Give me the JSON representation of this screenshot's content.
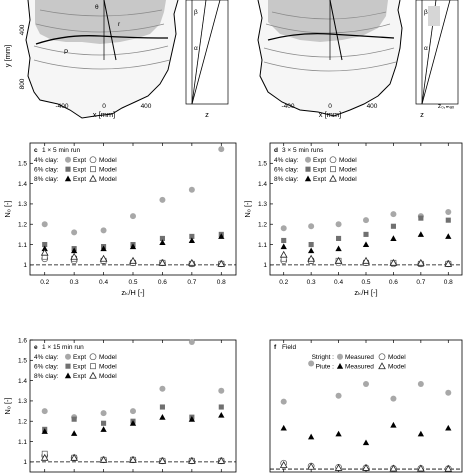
{
  "chart_data": [
    {
      "id": "a",
      "type": "diagram",
      "ylabel": "y [mm]",
      "xlabel": "x [mm]",
      "yticks": [
        400,
        800
      ],
      "xticks": [
        -400,
        0,
        400
      ],
      "labels": [
        "θ",
        "r",
        "P"
      ],
      "side": {
        "xlabel": "z",
        "labels": [
          "β",
          "α"
        ]
      }
    },
    {
      "id": "b",
      "type": "diagram",
      "xticks": [
        -400,
        0,
        400
      ],
      "xlabel": "x [mm]",
      "side": {
        "xlabel": "z",
        "tick": "z₀,ₘₐₓ",
        "labels": [
          "β",
          "α"
        ]
      }
    },
    {
      "id": "c",
      "type": "scatter",
      "panel_label": "c",
      "title": "1 × 5 min run",
      "xlabel": "zₖ/H [-]",
      "ylabel": "N₀ [-]",
      "xlim": [
        0.15,
        0.85
      ],
      "ylim": [
        0.95,
        1.6
      ],
      "xticks": [
        "0.2",
        "0.3",
        "0.4",
        "0.5",
        "0.6",
        "0.7",
        "0.8"
      ],
      "yticks": [
        "1",
        "1.1",
        "1.2",
        "1.3",
        "1.4",
        "1.5"
      ],
      "x": [
        0.2,
        0.3,
        0.4,
        0.5,
        0.6,
        0.7,
        0.8
      ],
      "reference_line": 1.0,
      "legend": [
        {
          "group": "4% clay:",
          "expt": "Expt",
          "model": "Model"
        },
        {
          "group": "6% clay:",
          "expt": "Expt",
          "model": "Model"
        },
        {
          "group": "8% clay:",
          "expt": "Expt",
          "model": "Model"
        }
      ],
      "series": [
        {
          "name": "4% clay: Expt",
          "values": [
            1.2,
            1.16,
            1.17,
            1.24,
            1.32,
            1.37,
            1.57
          ]
        },
        {
          "name": "4% clay: Model",
          "values": [
            1.03,
            1.02,
            1.02,
            1.01,
            1.01,
            1.005,
            1.005
          ]
        },
        {
          "name": "6% clay: Expt",
          "values": [
            1.1,
            1.08,
            1.09,
            1.1,
            1.13,
            1.14,
            1.15
          ]
        },
        {
          "name": "6% clay: Model",
          "values": [
            1.04,
            1.03,
            1.02,
            1.01,
            1.01,
            1.005,
            1.005
          ]
        },
        {
          "name": "8% clay: Expt",
          "values": [
            1.08,
            1.07,
            1.08,
            1.09,
            1.11,
            1.12,
            1.14
          ]
        },
        {
          "name": "8% clay: Model",
          "values": [
            1.06,
            1.04,
            1.03,
            1.02,
            1.01,
            1.01,
            1.005
          ]
        }
      ]
    },
    {
      "id": "d",
      "type": "scatter",
      "panel_label": "d",
      "title": "3 × 5 min runs",
      "xlabel": "zₖ/H [-]",
      "ylabel": "N₀ [-]",
      "xlim": [
        0.15,
        0.85
      ],
      "ylim": [
        0.95,
        1.6
      ],
      "xticks": [
        "0.2",
        "0.3",
        "0.4",
        "0.5",
        "0.6",
        "0.7",
        "0.8"
      ],
      "yticks": [
        "1",
        "1.1",
        "1.2",
        "1.3",
        "1.4",
        "1.5"
      ],
      "x": [
        0.2,
        0.3,
        0.4,
        0.5,
        0.6,
        0.7,
        0.8
      ],
      "reference_line": 1.0,
      "legend": [
        {
          "group": "4% clay:",
          "expt": "Expt",
          "model": "Model"
        },
        {
          "group": "6% clay:",
          "expt": "Expt",
          "model": "Model"
        },
        {
          "group": "8% clay:",
          "expt": "Expt",
          "model": "Model"
        }
      ],
      "series": [
        {
          "name": "4% clay: Expt",
          "values": [
            1.18,
            1.19,
            1.2,
            1.22,
            1.25,
            1.24,
            1.26
          ]
        },
        {
          "name": "4% clay: Model",
          "values": [
            1.02,
            1.02,
            1.01,
            1.01,
            1.005,
            1.005,
            1.005
          ]
        },
        {
          "name": "6% clay: Expt",
          "values": [
            1.12,
            1.1,
            1.13,
            1.15,
            1.19,
            1.23,
            1.22
          ]
        },
        {
          "name": "6% clay: Model",
          "values": [
            1.03,
            1.02,
            1.02,
            1.01,
            1.01,
            1.005,
            1.005
          ]
        },
        {
          "name": "8% clay: Expt",
          "values": [
            1.09,
            1.07,
            1.08,
            1.1,
            1.13,
            1.15,
            1.14
          ]
        },
        {
          "name": "8% clay: Model",
          "values": [
            1.05,
            1.03,
            1.02,
            1.02,
            1.01,
            1.01,
            1.005
          ]
        }
      ]
    },
    {
      "id": "e",
      "type": "scatter",
      "panel_label": "e",
      "title": "1 × 15 min run",
      "ylabel": "N₀ [-]",
      "xlim": [
        0.15,
        0.85
      ],
      "ylim": [
        0.95,
        1.6
      ],
      "yticks": [
        "1",
        "1.1",
        "1.2",
        "1.3",
        "1.4",
        "1.5",
        "1.6"
      ],
      "x": [
        0.2,
        0.3,
        0.4,
        0.5,
        0.6,
        0.7,
        0.8
      ],
      "reference_line": 1.0,
      "legend": [
        {
          "group": "4% clay:",
          "expt": "Expt",
          "model": "Model"
        },
        {
          "group": "6% clay:",
          "expt": "Expt",
          "model": "Model"
        },
        {
          "group": "8% clay:",
          "expt": "Expt",
          "model": "Model"
        }
      ],
      "series": [
        {
          "name": "4% clay: Expt",
          "values": [
            1.25,
            1.22,
            1.24,
            1.25,
            1.36,
            1.59,
            1.35
          ]
        },
        {
          "name": "4% clay: Model",
          "values": [
            1.03,
            1.02,
            1.01,
            1.01,
            1.005,
            1.005,
            1.005
          ]
        },
        {
          "name": "6% clay: Expt",
          "values": [
            1.16,
            1.21,
            1.19,
            1.2,
            1.27,
            1.22,
            1.27
          ]
        },
        {
          "name": "6% clay: Model",
          "values": [
            1.04,
            1.02,
            1.01,
            1.01,
            1.005,
            1.005,
            1.005
          ]
        },
        {
          "name": "8% clay: Expt",
          "values": [
            1.15,
            1.14,
            1.16,
            1.19,
            1.22,
            1.21,
            1.23
          ]
        },
        {
          "name": "8% clay: Model",
          "values": [
            1.02,
            1.02,
            1.01,
            1.01,
            1.005,
            1.005,
            1.005
          ]
        }
      ]
    },
    {
      "id": "f",
      "type": "scatter",
      "panel_label": "f",
      "title": "Field",
      "ylabel": "",
      "xlim": [
        0.15,
        0.85
      ],
      "ylim": [
        0.95,
        3.2
      ],
      "x": [
        0.2,
        0.3,
        0.4,
        0.5,
        0.6,
        0.7,
        0.8
      ],
      "reference_line": 1.0,
      "legend": [
        {
          "group": "Stright :",
          "expt": "Measured",
          "model": "Model"
        },
        {
          "group": "Piute :",
          "expt": "Measured",
          "model": "Model"
        }
      ],
      "series": [
        {
          "name": "Stright : Measured",
          "values": [
            2.15,
            2.8,
            2.25,
            2.45,
            2.2,
            2.45,
            2.3
          ]
        },
        {
          "name": "Stright : Model",
          "values": [
            1.1,
            1.05,
            1.03,
            1.02,
            1.01,
            1.01,
            1.005
          ]
        },
        {
          "name": "Piute : Measured",
          "values": [
            1.7,
            1.55,
            1.6,
            1.45,
            1.75,
            1.6,
            1.7
          ]
        },
        {
          "name": "Piute : Model",
          "values": [
            1.07,
            1.04,
            1.02,
            1.02,
            1.01,
            1.01,
            1.005
          ]
        }
      ]
    }
  ]
}
